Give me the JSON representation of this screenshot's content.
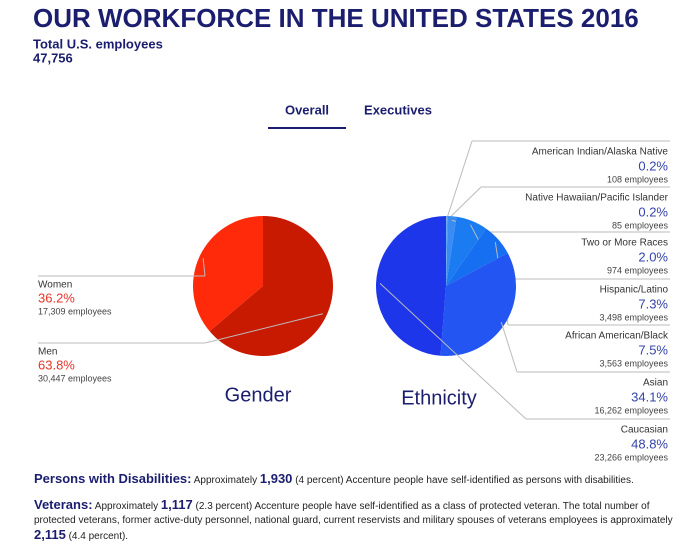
{
  "header": {
    "title": "OUR WORKFORCE IN THE UNITED STATES 2016",
    "subtitle": "Total U.S. employees",
    "total": "47,756"
  },
  "tabs": [
    "Overall",
    "Executives"
  ],
  "chart_data": [
    {
      "type": "pie",
      "title": "Gender",
      "direction": "counterclockwise",
      "categories": [
        "Women",
        "Men"
      ],
      "values": [
        36.2,
        63.8
      ],
      "value_labels": [
        "36.2%",
        "63.8%"
      ],
      "employee_labels": [
        "17,309 employees",
        "30,447 employees"
      ],
      "colors": [
        "#ff2a0a",
        "#c81a00"
      ],
      "label_color": "#e8352a"
    },
    {
      "type": "pie",
      "title": "Ethnicity",
      "direction": "clockwise",
      "categories": [
        "American Indian/Alaska Native",
        "Native Hawaiian/Pacific Islander",
        "Two or More Races",
        "Hispanic/Latino",
        "African American/Black",
        "Asian",
        "Caucasian"
      ],
      "values": [
        0.2,
        0.2,
        2.0,
        7.3,
        7.5,
        34.1,
        48.8
      ],
      "value_labels": [
        "0.2%",
        "0.2%",
        "2.0%",
        "7.3%",
        "7.5%",
        "34.1%",
        "48.8%"
      ],
      "employee_labels": [
        "108 employees",
        "85 employees",
        "974 employees",
        "3,498 employees",
        "3,563 employees",
        "16,262 employees",
        "23,266 employees"
      ],
      "colors": [
        "#5aa8f5",
        "#4a9cf5",
        "#3a8cf2",
        "#1a7cf0",
        "#166ef0",
        "#2255f2",
        "#1e36ea"
      ],
      "label_color": "#3444a8"
    }
  ],
  "notes": [
    {
      "heading": "Persons with Disabilities:",
      "parts": [
        "Approximately ",
        "1,930",
        " (4 percent) Accenture people have self-identified as persons with disabilities."
      ]
    },
    {
      "heading": "Veterans:",
      "parts": [
        "Approximately ",
        "1,117",
        " (2.3 percent) Accenture people have self-identified as a class of protected veteran. The total number of protected veterans, former active-duty personnel, national guard, current reservists and military spouses of veterans employees is approximately ",
        "2,115",
        " (4.4 percent)."
      ]
    }
  ]
}
